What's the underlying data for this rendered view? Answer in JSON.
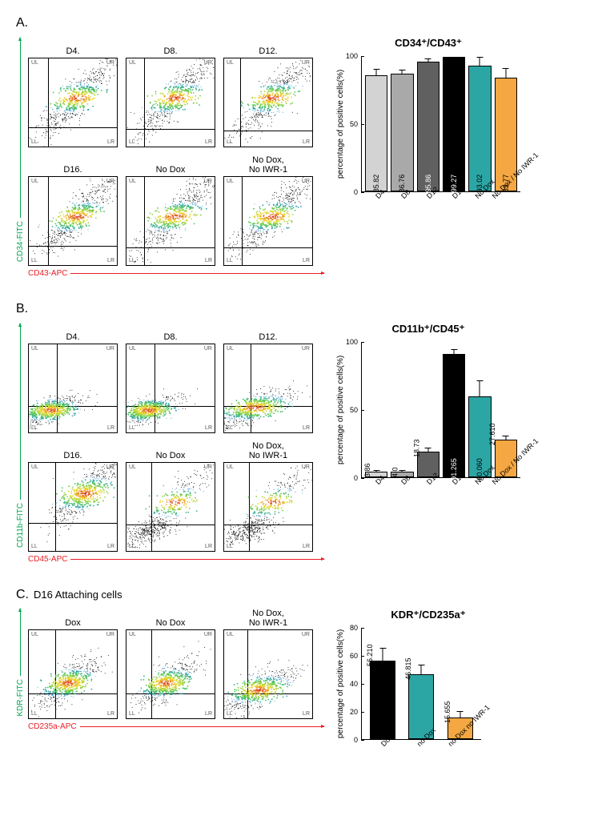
{
  "sections": {
    "A": {
      "label": "A.",
      "y_axis": "CD34-FITC",
      "x_axis": "CD43-APC",
      "plots": [
        {
          "title": "D4.",
          "qv": 22,
          "qh": 78,
          "diag": true
        },
        {
          "title": "D8.",
          "qv": 20,
          "qh": 80,
          "diag": true
        },
        {
          "title": "D12.",
          "qv": 18,
          "qh": 82,
          "diag": true
        },
        {
          "title": "D16.",
          "qv": 22,
          "qh": 78,
          "diag": true
        },
        {
          "title": "No Dox",
          "qv": 20,
          "qh": 80,
          "diag": true
        },
        {
          "title": "No Dox,\nNo IWR-1",
          "qv": 20,
          "qh": 80,
          "diag": true
        }
      ],
      "chart": {
        "title": "CD34⁺/CD43⁺",
        "ylabel": "percentage of positive cells(%)",
        "ymax": 100,
        "ytick_step": 50,
        "bars": [
          {
            "label": "D4",
            "value": 85.82,
            "value_label": "85.82",
            "err": 5,
            "color": "#d3d3d3",
            "text_color": "#000"
          },
          {
            "label": "D8",
            "value": 86.76,
            "value_label": "86.76",
            "err": 4,
            "color": "#a9a9a9",
            "text_color": "#000"
          },
          {
            "label": "D12",
            "value": 95.86,
            "value_label": "95.86",
            "err": 3,
            "color": "#606060",
            "text_color": "#fff"
          },
          {
            "label": "D16",
            "value": 99.27,
            "value_label": "99.27",
            "err": 1,
            "color": "#000000",
            "text_color": "#fff"
          },
          {
            "label": "No Dox",
            "value": 93.02,
            "value_label": "93.02",
            "err": 7,
            "color": "#2ca6a4",
            "text_color": "#000"
          },
          {
            "label": "No Dox / No IWR-1",
            "value": 83.77,
            "value_label": "83.77",
            "err": 8,
            "color": "#f4a742",
            "text_color": "#000"
          }
        ]
      }
    },
    "B": {
      "label": "B.",
      "y_axis": "CD11b-FITC",
      "x_axis": "CD45-APC",
      "plots": [
        {
          "title": "D4.",
          "qv": 32,
          "qh": 70,
          "low": true
        },
        {
          "title": "D8.",
          "qv": 32,
          "qh": 70,
          "low": true
        },
        {
          "title": "D12.",
          "qv": 30,
          "qh": 70,
          "low_spread": true
        },
        {
          "title": "D16.",
          "qv": 30,
          "qh": 68,
          "high": true
        },
        {
          "title": "No Dox",
          "qv": 28,
          "qh": 70,
          "bimodal": true
        },
        {
          "title": "No Dox,\nNo IWR-1",
          "qv": 28,
          "qh": 70,
          "bimodal": true
        }
      ],
      "chart": {
        "title": "CD11b⁺/CD45⁺",
        "ylabel": "percentage of positive cells(%)",
        "ymax": 100,
        "ytick_step": 50,
        "bars": [
          {
            "label": "D4",
            "value": 3.86,
            "value_label": "3.86",
            "err": 2,
            "color": "#d3d3d3",
            "text_color": "#000",
            "value_above": true
          },
          {
            "label": "D8",
            "value": 4.0,
            "value_label": "4.0",
            "err": 2,
            "color": "#a9a9a9",
            "text_color": "#000",
            "value_above": true
          },
          {
            "label": "D12",
            "value": 18.73,
            "value_label": "18.73",
            "err": 4,
            "color": "#606060",
            "text_color": "#000",
            "value_above": true
          },
          {
            "label": "D16",
            "value": 91.265,
            "value_label": "91.265",
            "err": 4,
            "color": "#000000",
            "text_color": "#fff"
          },
          {
            "label": "No Dox",
            "value": 60.06,
            "value_label": "60.060",
            "err": 12,
            "color": "#2ca6a4",
            "text_color": "#000"
          },
          {
            "label": "No Dox / No IWR-1",
            "value": 27.61,
            "value_label": "27.610",
            "err": 4,
            "color": "#f4a742",
            "text_color": "#000",
            "value_above": true
          }
        ]
      }
    },
    "C": {
      "label": "C.",
      "subtitle": "D16 Attaching cells",
      "y_axis": "KDR-FITC",
      "x_axis": "CD235a-APC",
      "plots": [
        {
          "title": "Dox",
          "qv": 30,
          "qh": 72,
          "mid": true
        },
        {
          "title": "No Dox",
          "qv": 28,
          "qh": 72,
          "mid": true
        },
        {
          "title": "No Dox,\nNo IWR-1",
          "qv": 26,
          "qh": 72,
          "mid_low": true
        }
      ],
      "chart": {
        "title": "KDR⁺/CD235a⁺",
        "ylabel": "percentage of positive cells(%)",
        "ymax": 80,
        "yticks": [
          0,
          20,
          40,
          60,
          80
        ],
        "bars": [
          {
            "label": "Dox",
            "value": 56.21,
            "value_label": "56.210",
            "err": 8,
            "color": "#000000",
            "text_color": "#000",
            "value_above": true
          },
          {
            "label": "no Dox",
            "value": 46.815,
            "value_label": "46.815",
            "err": 6,
            "color": "#2ca6a4",
            "text_color": "#000",
            "value_above": true
          },
          {
            "label": "no Dox no IWR-1",
            "value": 15.655,
            "value_label": "15.655",
            "err": 4,
            "color": "#f4a742",
            "text_color": "#000",
            "value_above": true
          }
        ]
      }
    }
  },
  "colors": {
    "y_axis": "#00a651",
    "x_axis": "#ed1c24"
  }
}
